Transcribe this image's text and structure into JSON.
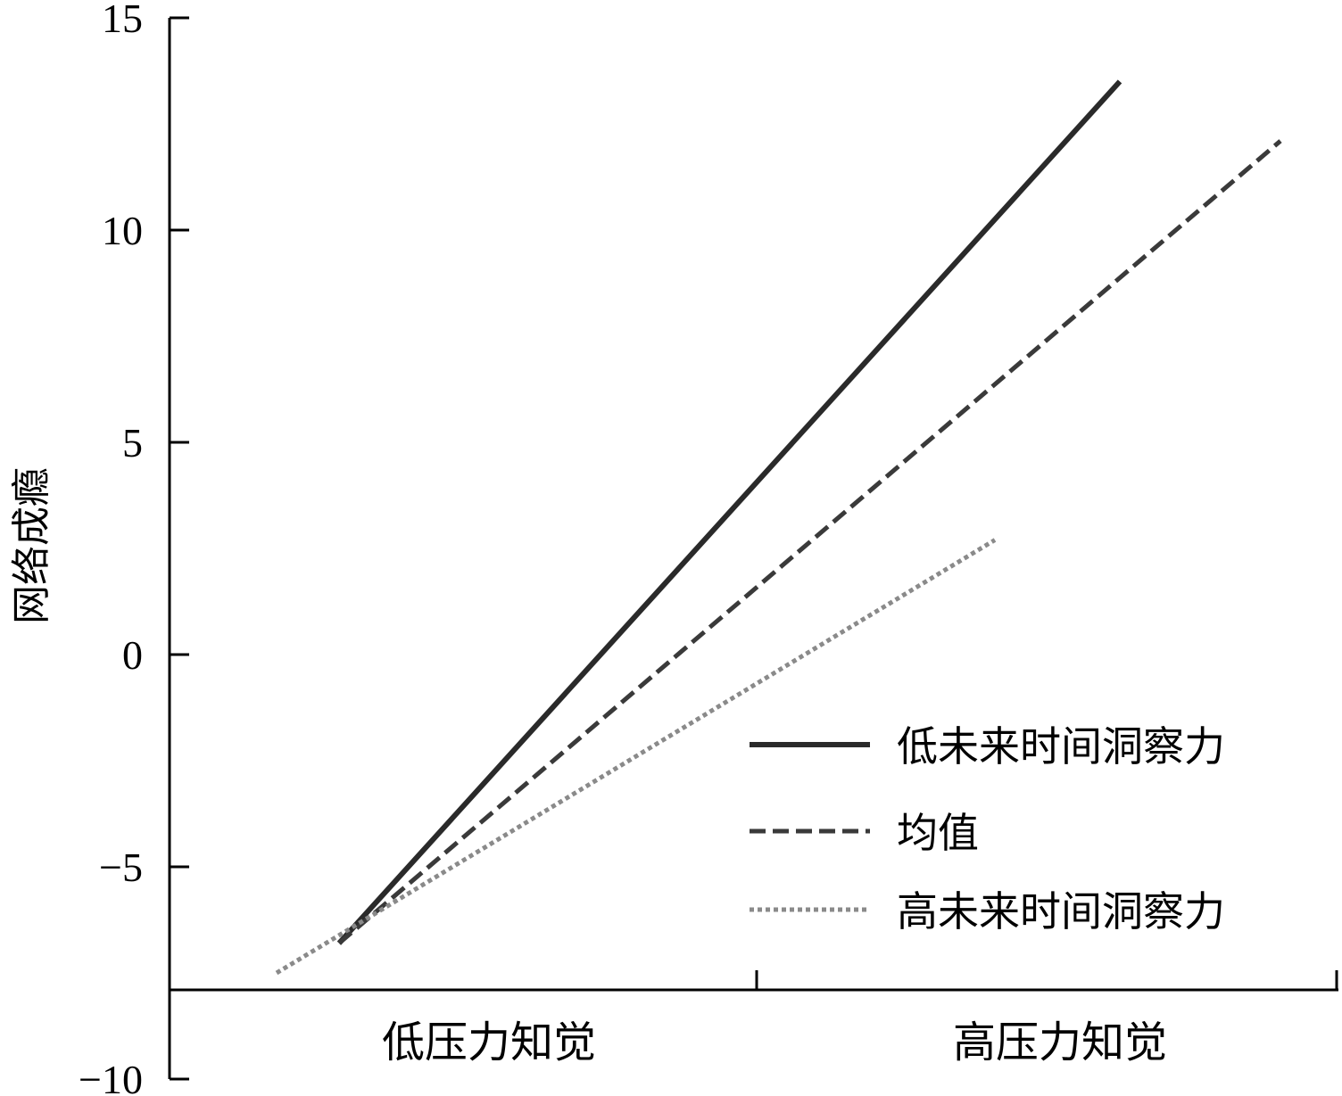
{
  "chart_data": {
    "type": "line",
    "xlabel": "",
    "ylabel": "网络成瘾",
    "categories": [
      "低压力知觉",
      "高压力知觉"
    ],
    "ylim": [
      -10,
      15
    ],
    "yticks": [
      -10,
      -5,
      0,
      5,
      10,
      15
    ],
    "series": [
      {
        "name": "低未来时间洞察力",
        "values": [
          -6.8,
          13.5
        ],
        "style": "solid",
        "color": "#2a2a2a"
      },
      {
        "name": "均值",
        "values": [
          -6.8,
          12.1
        ],
        "style": "dashed",
        "color": "#3a3a3a"
      },
      {
        "name": "高未来时间洞察力",
        "values": [
          -7.5,
          2.7
        ],
        "style": "dotted",
        "color": "#8a8a8a"
      }
    ],
    "legend_position": "bottom-right",
    "grid": false
  }
}
